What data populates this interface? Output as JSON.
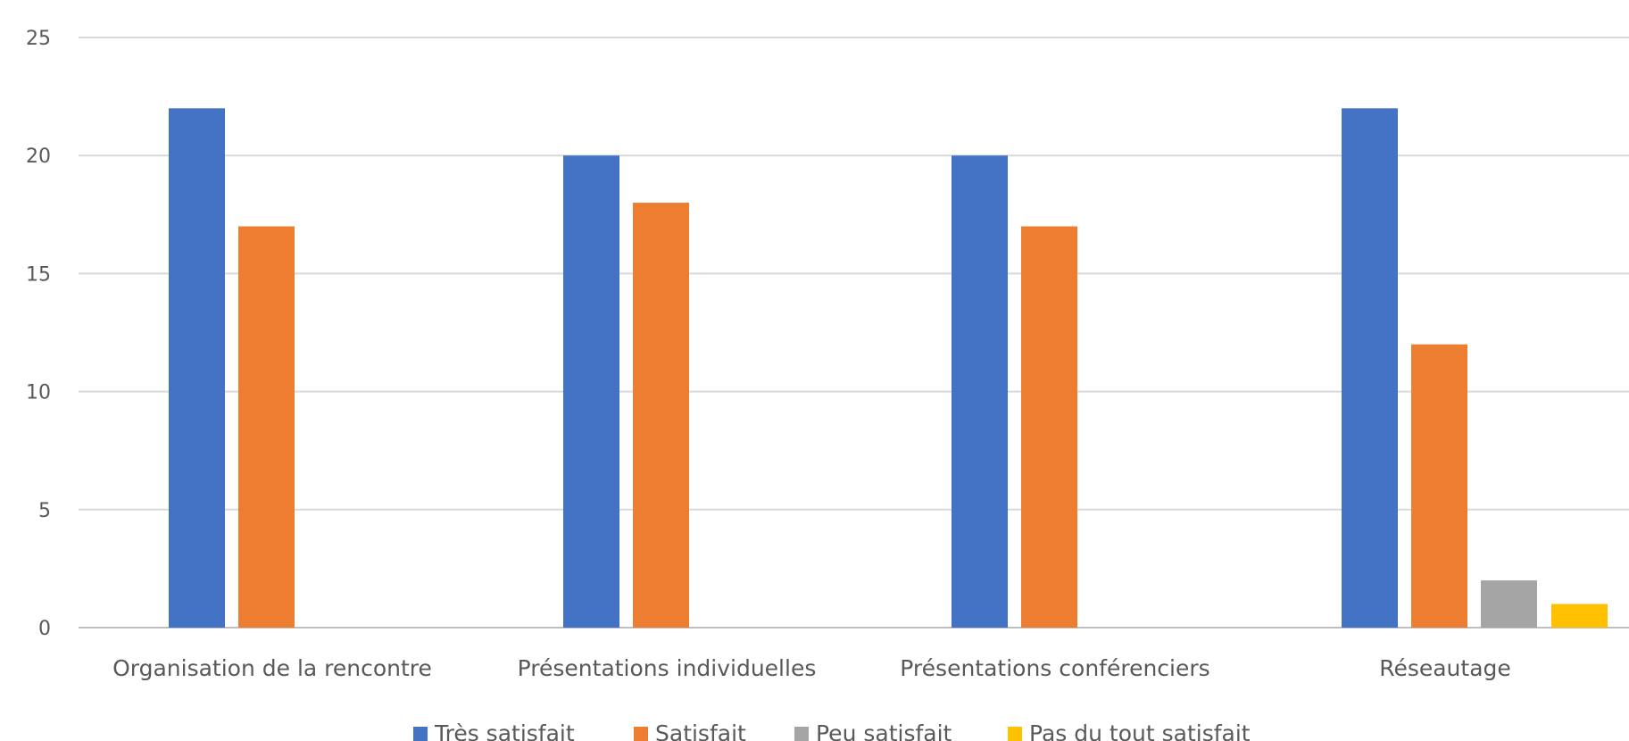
{
  "chart_data": {
    "type": "bar",
    "categories": [
      "Organisation de la rencontre",
      "Présentations individuelles",
      "Présentations conférenciers",
      "Réseautage"
    ],
    "series": [
      {
        "name": "Très satisfait",
        "color": "#4472C4",
        "values": [
          22,
          20,
          20,
          22
        ]
      },
      {
        "name": "Satisfait",
        "color": "#ED7D31",
        "values": [
          17,
          18,
          17,
          12
        ]
      },
      {
        "name": "Peu satisfait",
        "color": "#A5A5A5",
        "values": [
          0,
          0,
          0,
          2
        ]
      },
      {
        "name": "Pas du tout satisfait",
        "color": "#FFC000",
        "values": [
          0,
          0,
          0,
          1
        ]
      }
    ],
    "yticks": [
      0,
      5,
      10,
      15,
      20,
      25
    ],
    "ylim": [
      0,
      25
    ],
    "grid": true,
    "legend_position": "bottom",
    "title": "",
    "xlabel": "",
    "ylabel": ""
  }
}
